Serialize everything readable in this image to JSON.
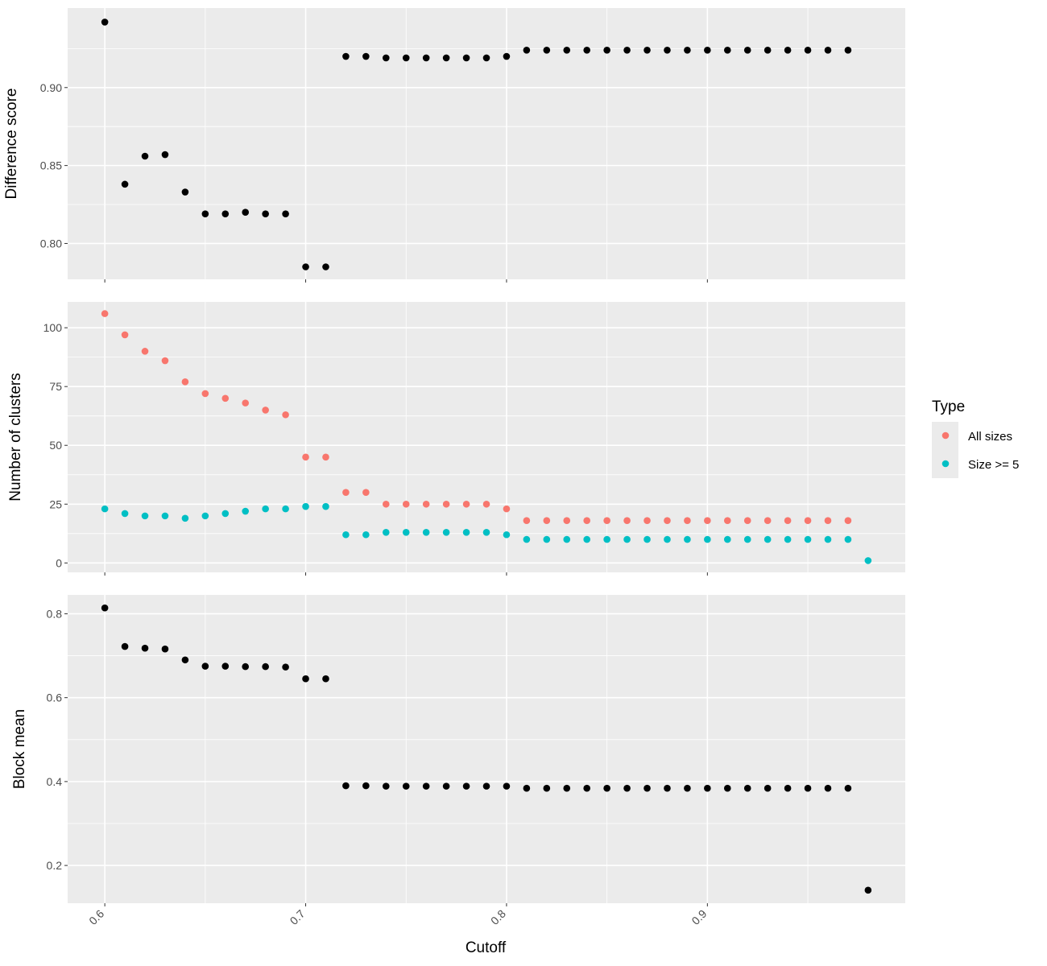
{
  "chart_data": {
    "type": "scatter",
    "xlabel": "Cutoff",
    "xlim": [
      0.5815,
      0.9985
    ],
    "x_ticks": [
      0.6,
      0.7,
      0.8,
      0.9
    ],
    "x_tick_labels": [
      "0.6",
      "0.7",
      "0.8",
      "0.9"
    ],
    "legend": {
      "title": "Type",
      "placement": "right",
      "entries": [
        {
          "label": "All sizes",
          "color": "#F8766D"
        },
        {
          "label": "Size >= 5",
          "color": "#00BFC4"
        }
      ]
    },
    "panels": [
      {
        "ylabel": "Difference score",
        "ylim": [
          0.777,
          0.951
        ],
        "y_ticks": [
          0.8,
          0.85,
          0.9
        ],
        "y_tick_labels": [
          "0.80",
          "0.85",
          "0.90"
        ],
        "series": [
          {
            "color": "#000000",
            "x": [
              0.6,
              0.61,
              0.62,
              0.63,
              0.64,
              0.65,
              0.66,
              0.67,
              0.68,
              0.69,
              0.7,
              0.71,
              0.72,
              0.73,
              0.74,
              0.75,
              0.76,
              0.77,
              0.78,
              0.79,
              0.8,
              0.81,
              0.82,
              0.83,
              0.84,
              0.85,
              0.86,
              0.87,
              0.88,
              0.89,
              0.9,
              0.91,
              0.92,
              0.93,
              0.94,
              0.95,
              0.96,
              0.97
            ],
            "y": [
              0.942,
              0.838,
              0.856,
              0.857,
              0.833,
              0.819,
              0.819,
              0.82,
              0.819,
              0.819,
              0.785,
              0.785,
              0.92,
              0.92,
              0.919,
              0.919,
              0.919,
              0.919,
              0.919,
              0.919,
              0.92,
              0.924,
              0.924,
              0.924,
              0.924,
              0.924,
              0.924,
              0.924,
              0.924,
              0.924,
              0.924,
              0.924,
              0.924,
              0.924,
              0.924,
              0.924,
              0.924,
              0.924
            ]
          }
        ]
      },
      {
        "ylabel": "Number of clusters",
        "ylim": [
          -4,
          111
        ],
        "y_ticks": [
          0,
          25,
          50,
          75,
          100
        ],
        "y_tick_labels": [
          "0",
          "25",
          "50",
          "75",
          "100"
        ],
        "series": [
          {
            "name": "All sizes",
            "color": "#F8766D",
            "x": [
              0.6,
              0.61,
              0.62,
              0.63,
              0.64,
              0.65,
              0.66,
              0.67,
              0.68,
              0.69,
              0.7,
              0.71,
              0.72,
              0.73,
              0.74,
              0.75,
              0.76,
              0.77,
              0.78,
              0.79,
              0.8,
              0.81,
              0.82,
              0.83,
              0.84,
              0.85,
              0.86,
              0.87,
              0.88,
              0.89,
              0.9,
              0.91,
              0.92,
              0.93,
              0.94,
              0.95,
              0.96,
              0.97
            ],
            "y": [
              106,
              97,
              90,
              86,
              77,
              72,
              70,
              68,
              65,
              63,
              45,
              45,
              30,
              30,
              25,
              25,
              25,
              25,
              25,
              25,
              23,
              18,
              18,
              18,
              18,
              18,
              18,
              18,
              18,
              18,
              18,
              18,
              18,
              18,
              18,
              18,
              18,
              18
            ]
          },
          {
            "name": "Size >= 5",
            "color": "#00BFC4",
            "x": [
              0.6,
              0.61,
              0.62,
              0.63,
              0.64,
              0.65,
              0.66,
              0.67,
              0.68,
              0.69,
              0.7,
              0.71,
              0.72,
              0.73,
              0.74,
              0.75,
              0.76,
              0.77,
              0.78,
              0.79,
              0.8,
              0.81,
              0.82,
              0.83,
              0.84,
              0.85,
              0.86,
              0.87,
              0.88,
              0.89,
              0.9,
              0.91,
              0.92,
              0.93,
              0.94,
              0.95,
              0.96,
              0.97,
              0.98
            ],
            "y": [
              23,
              21,
              20,
              20,
              19,
              20,
              21,
              22,
              23,
              23,
              24,
              24,
              12,
              12,
              13,
              13,
              13,
              13,
              13,
              13,
              12,
              10,
              10,
              10,
              10,
              10,
              10,
              10,
              10,
              10,
              10,
              10,
              10,
              10,
              10,
              10,
              10,
              10,
              1
            ]
          }
        ]
      },
      {
        "ylabel": "Block mean",
        "ylim": [
          0.11,
          0.845
        ],
        "y_ticks": [
          0.2,
          0.4,
          0.6,
          0.8
        ],
        "y_tick_labels": [
          "0.2",
          "0.4",
          "0.6",
          "0.8"
        ],
        "series": [
          {
            "color": "#000000",
            "x": [
              0.6,
              0.61,
              0.62,
              0.63,
              0.64,
              0.65,
              0.66,
              0.67,
              0.68,
              0.69,
              0.7,
              0.71,
              0.72,
              0.73,
              0.74,
              0.75,
              0.76,
              0.77,
              0.78,
              0.79,
              0.8,
              0.81,
              0.82,
              0.83,
              0.84,
              0.85,
              0.86,
              0.87,
              0.88,
              0.89,
              0.9,
              0.91,
              0.92,
              0.93,
              0.94,
              0.95,
              0.96,
              0.97,
              0.98
            ],
            "y": [
              0.814,
              0.722,
              0.718,
              0.716,
              0.69,
              0.675,
              0.675,
              0.674,
              0.674,
              0.673,
              0.645,
              0.645,
              0.39,
              0.39,
              0.389,
              0.389,
              0.389,
              0.389,
              0.389,
              0.389,
              0.389,
              0.384,
              0.384,
              0.384,
              0.384,
              0.384,
              0.384,
              0.384,
              0.384,
              0.384,
              0.384,
              0.384,
              0.384,
              0.384,
              0.384,
              0.384,
              0.384,
              0.384,
              0.141
            ]
          }
        ]
      }
    ]
  }
}
